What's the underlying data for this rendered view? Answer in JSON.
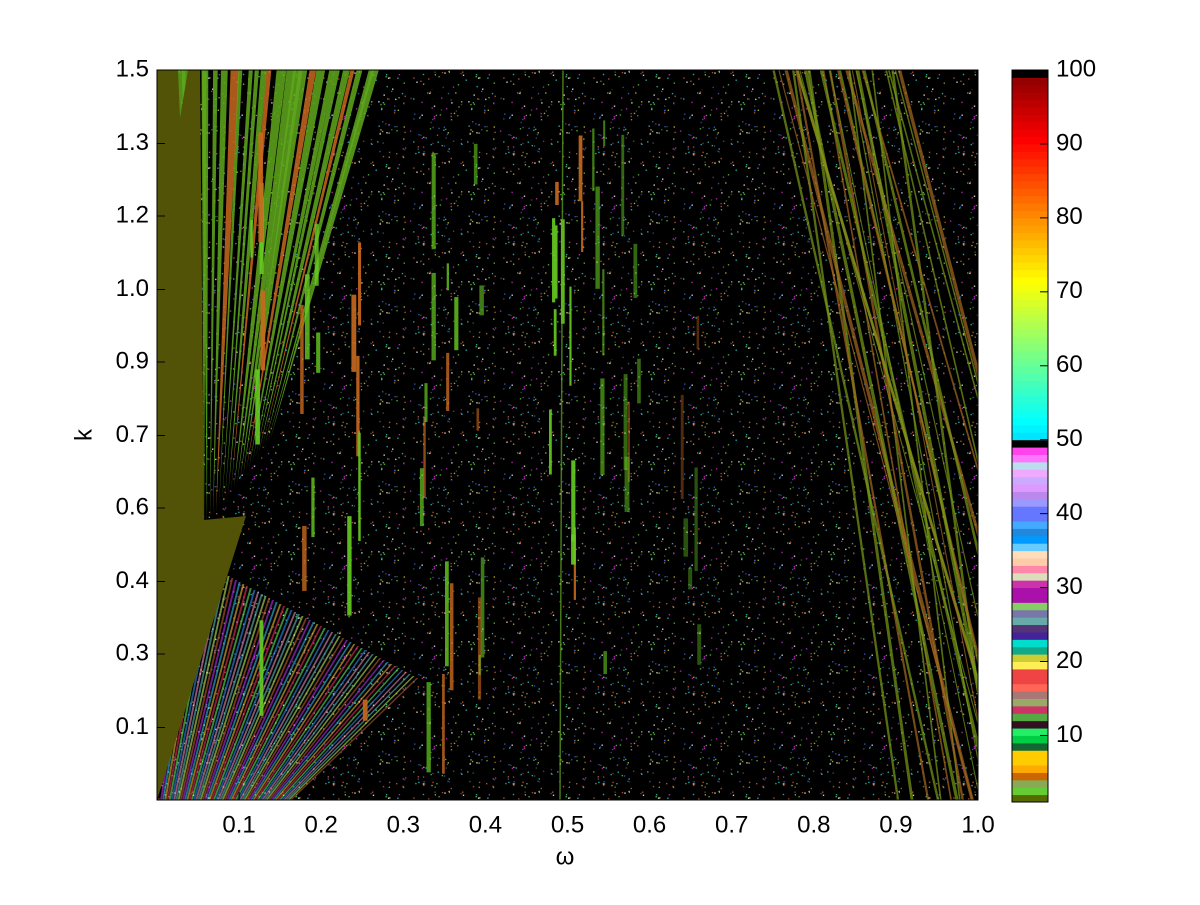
{
  "chart_data": {
    "type": "heatmap",
    "x_label": "ω",
    "y_label": "k",
    "xlim": [
      0,
      1
    ],
    "ylim": [
      0,
      1.5
    ],
    "xticks": [
      0.1,
      0.2,
      0.3,
      0.4,
      0.5,
      0.6,
      0.7,
      0.8,
      0.9,
      {
        "value": 1,
        "label": "1.0"
      }
    ],
    "yticks": [
      {
        "value": 0.149,
        "label": "0.1"
      },
      0.3,
      {
        "value": 0.449,
        "label": "0.4"
      },
      0.6,
      {
        "value": 0.749,
        "label": "0.7"
      },
      0.9,
      {
        "value": 1.049,
        "label": "1.0"
      },
      1.2,
      {
        "value": 1.349,
        "label": "1.3"
      },
      1.5
    ],
    "colorbar": {
      "lim": [
        1,
        100
      ],
      "ticks": [
        10,
        20,
        30,
        40,
        50,
        60,
        70,
        80,
        90,
        100
      ]
    }
  }
}
